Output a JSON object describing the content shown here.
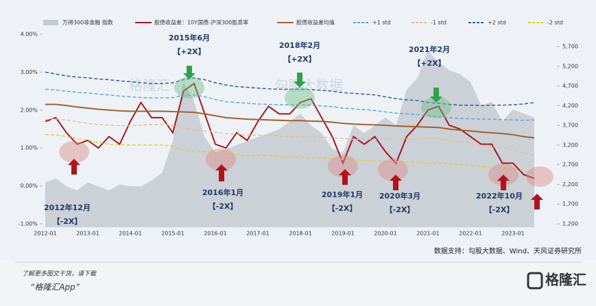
{
  "chart_data": {
    "type": "line",
    "x": [
      "2012-01",
      "2012-04",
      "2012-07",
      "2012-10",
      "2013-01",
      "2013-04",
      "2013-07",
      "2013-10",
      "2014-01",
      "2014-04",
      "2014-07",
      "2014-10",
      "2015-01",
      "2015-04",
      "2015-07",
      "2015-10",
      "2016-01",
      "2016-04",
      "2016-07",
      "2016-10",
      "2017-01",
      "2017-04",
      "2017-07",
      "2017-10",
      "2018-01",
      "2018-04",
      "2018-07",
      "2018-10",
      "2019-01",
      "2019-04",
      "2019-07",
      "2019-10",
      "2020-01",
      "2020-04",
      "2020-07",
      "2020-10",
      "2021-01",
      "2021-04",
      "2021-07",
      "2021-10",
      "2022-01",
      "2022-04",
      "2022-07",
      "2022-10",
      "2023-01",
      "2023-04",
      "2023-07"
    ],
    "xticks": [
      "2012-01",
      "2013-01",
      "2014-01",
      "2015-01",
      "2016-01",
      "2017-01",
      "2018-01",
      "2019-01",
      "2020-01",
      "2021-01",
      "2022-01",
      "2023-01"
    ],
    "ylim": [
      -1.09,
      4.18
    ],
    "yticks": [
      {
        "value": 4,
        "label": "4.00%"
      },
      {
        "value": 3,
        "label": "3.00%"
      },
      {
        "value": 2,
        "label": "2.00%"
      },
      {
        "value": 1,
        "label": "1.00%"
      },
      {
        "value": 0,
        "label": "0.00%"
      },
      {
        "value": -1,
        "label": "-1.00%"
      }
    ],
    "y2lim": [
      1113,
      6186
    ],
    "y2ticks": [
      {
        "value": 5700,
        "label": "5,700"
      },
      {
        "value": 5200,
        "label": "5,200"
      },
      {
        "value": 4700,
        "label": "4,700"
      },
      {
        "value": 4200,
        "label": "4,200"
      },
      {
        "value": 3700,
        "label": "3,700"
      },
      {
        "value": 3200,
        "label": "3,200"
      },
      {
        "value": 2700,
        "label": "2,700"
      },
      {
        "value": 2200,
        "label": "2,200"
      },
      {
        "value": 1700,
        "label": "1,700"
      },
      {
        "value": 1200,
        "label": "1,200"
      }
    ],
    "series": [
      {
        "name": "万得300非金融 指数",
        "color": "#c5cad1",
        "axis": "y2",
        "fill": true,
        "values": [
          2250,
          2350,
          2150,
          2050,
          2250,
          2150,
          2050,
          2200,
          2150,
          2150,
          2300,
          2500,
          3300,
          4800,
          4300,
          3400,
          3000,
          3100,
          3200,
          3300,
          3400,
          3500,
          3600,
          3800,
          4000,
          3700,
          3500,
          3100,
          3000,
          3700,
          3500,
          3700,
          3900,
          3700,
          4600,
          4900,
          5600,
          5300,
          5100,
          5000,
          4800,
          4200,
          4300,
          3800,
          4100,
          4000,
          3900
        ]
      },
      {
        "name": "股债收益差：10Y国债-沪深300股息率",
        "color": "#a3171b",
        "values": [
          1.7,
          1.8,
          1.4,
          1.1,
          1.2,
          1.0,
          1.3,
          1.1,
          1.7,
          2.2,
          1.8,
          1.8,
          1.4,
          2.5,
          2.7,
          1.9,
          1.1,
          1.0,
          1.4,
          1.2,
          1.7,
          2.1,
          1.9,
          1.9,
          2.2,
          2.3,
          1.8,
          1.3,
          0.6,
          1.3,
          1.1,
          1.3,
          0.9,
          0.6,
          1.3,
          1.6,
          2.0,
          2.1,
          1.6,
          1.5,
          1.3,
          1.1,
          1.1,
          0.6,
          0.6,
          0.3,
          0.2
        ]
      },
      {
        "name": "股债收益差均值",
        "color": "#a0622a",
        "values": [
          2.15,
          2.15,
          2.12,
          2.08,
          2.05,
          2.02,
          2.0,
          1.98,
          1.97,
          1.97,
          1.97,
          1.97,
          1.96,
          1.95,
          1.94,
          1.9,
          1.85,
          1.8,
          1.78,
          1.76,
          1.75,
          1.74,
          1.73,
          1.72,
          1.72,
          1.71,
          1.7,
          1.68,
          1.65,
          1.63,
          1.62,
          1.61,
          1.6,
          1.58,
          1.57,
          1.56,
          1.55,
          1.54,
          1.5,
          1.47,
          1.45,
          1.42,
          1.4,
          1.38,
          1.35,
          1.3,
          1.27
        ]
      },
      {
        "name": "+1 std",
        "color": "#5aa7d8",
        "dash": true,
        "values": [
          2.55,
          2.53,
          2.5,
          2.47,
          2.45,
          2.42,
          2.4,
          2.37,
          2.35,
          2.33,
          2.32,
          2.32,
          2.33,
          2.38,
          2.4,
          2.35,
          2.28,
          2.22,
          2.2,
          2.18,
          2.16,
          2.15,
          2.14,
          2.14,
          2.14,
          2.13,
          2.11,
          2.09,
          2.05,
          2.03,
          2.01,
          1.99,
          1.95,
          1.92,
          1.9,
          1.88,
          1.85,
          1.83,
          1.8,
          1.78,
          1.77,
          1.76,
          1.76,
          1.75,
          1.74,
          1.73,
          1.74
        ]
      },
      {
        "name": "-1 std",
        "color": "#e6bf93",
        "dash": true,
        "values": [
          1.75,
          1.77,
          1.74,
          1.69,
          1.65,
          1.62,
          1.6,
          1.59,
          1.59,
          1.6,
          1.62,
          1.62,
          1.6,
          1.52,
          1.48,
          1.45,
          1.42,
          1.38,
          1.36,
          1.34,
          1.34,
          1.33,
          1.32,
          1.3,
          1.3,
          1.29,
          1.29,
          1.27,
          1.25,
          1.23,
          1.23,
          1.23,
          1.25,
          1.24,
          1.24,
          1.24,
          1.25,
          1.25,
          1.2,
          1.16,
          1.13,
          1.08,
          1.04,
          1.01,
          0.96,
          0.87,
          0.8
        ]
      },
      {
        "name": "+2 std",
        "color": "#2f5d9a",
        "dash": true,
        "values": [
          3.0,
          2.95,
          2.9,
          2.87,
          2.85,
          2.82,
          2.8,
          2.77,
          2.75,
          2.72,
          2.7,
          2.7,
          2.72,
          2.8,
          2.85,
          2.8,
          2.72,
          2.66,
          2.62,
          2.6,
          2.58,
          2.56,
          2.55,
          2.55,
          2.55,
          2.54,
          2.52,
          2.5,
          2.46,
          2.44,
          2.42,
          2.4,
          2.35,
          2.3,
          2.27,
          2.25,
          2.2,
          2.18,
          2.15,
          2.13,
          2.13,
          2.12,
          2.13,
          2.13,
          2.14,
          2.16,
          2.2
        ]
      },
      {
        "name": "-2 std",
        "color": "#e3cf33",
        "dash": true,
        "values": [
          1.35,
          1.35,
          1.3,
          1.25,
          1.2,
          1.15,
          1.1,
          1.08,
          1.08,
          1.08,
          1.08,
          1.08,
          1.05,
          0.95,
          0.9,
          0.9,
          0.88,
          0.85,
          0.82,
          0.8,
          0.8,
          0.8,
          0.78,
          0.76,
          0.75,
          0.74,
          0.74,
          0.72,
          0.7,
          0.68,
          0.67,
          0.66,
          0.65,
          0.64,
          0.63,
          0.62,
          0.6,
          0.6,
          0.58,
          0.56,
          0.54,
          0.52,
          0.5,
          0.48,
          0.45,
          0.4,
          0.35
        ]
      }
    ],
    "annotations": [
      {
        "date": "2015年6月",
        "tag": "【+2X】"
      },
      {
        "date": "2018年2月",
        "tag": "【+2X】"
      },
      {
        "date": "2021年2月",
        "tag": "【+2X】"
      },
      {
        "date": "2012年12月",
        "tag": "【-2X】"
      },
      {
        "date": "2016年1月",
        "tag": "【-2X】"
      },
      {
        "date": "2019年1月",
        "tag": "【-2X】"
      },
      {
        "date": "2020年3月",
        "tag": "【-2X】"
      },
      {
        "date": "2022年10月",
        "tag": "【-2X】"
      }
    ],
    "source": "数据支持：勾股大数据、Wind、天风证券研究所"
  },
  "watermarks": [
    "格隆汇",
    "勾股大数据"
  ],
  "footer": {
    "line1": "了解更多图文干货，请下载",
    "line2": "“格隆汇App”",
    "logo": "格隆汇"
  }
}
